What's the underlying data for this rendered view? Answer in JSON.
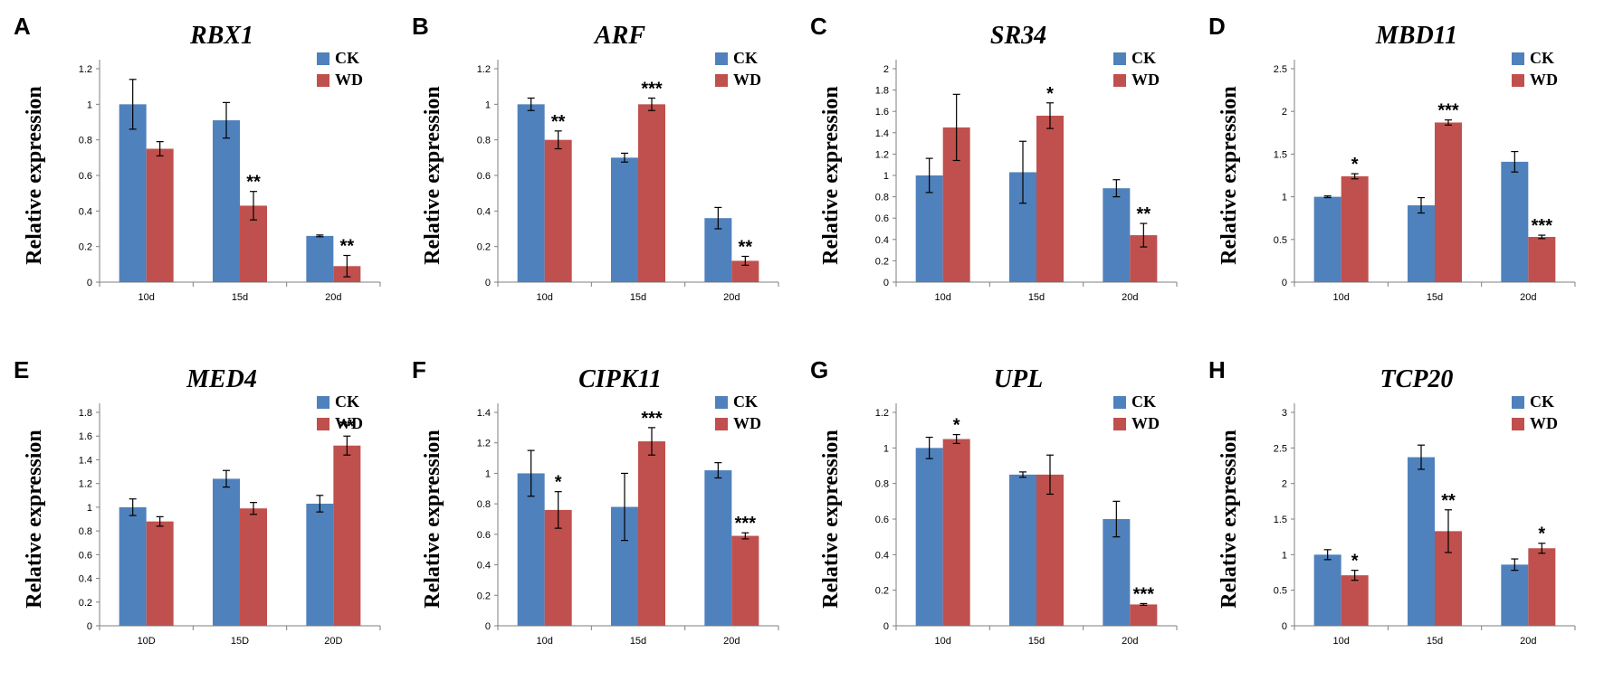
{
  "colors": {
    "ck": "#4f81bd",
    "wd": "#c0504d",
    "axis": "#7f7f7f",
    "errorbar": "#000000"
  },
  "chart_data": [
    {
      "panel": "A",
      "title": "RBX1",
      "type": "bar",
      "ylabel": "Relative expression",
      "categories": [
        "10d",
        "15d",
        "20d"
      ],
      "ylim": [
        0,
        1.2
      ],
      "yticks": [
        "0",
        "0.2",
        "0.4",
        "0.6",
        "0.8",
        "1",
        "1.2"
      ],
      "legend": [
        "CK",
        "WD"
      ],
      "series": [
        {
          "name": "CK",
          "values": [
            1.0,
            0.91,
            0.26
          ],
          "errors": [
            0.14,
            0.1,
            0.005
          ],
          "sig": [
            "",
            "",
            ""
          ]
        },
        {
          "name": "WD",
          "values": [
            0.75,
            0.43,
            0.09
          ],
          "errors": [
            0.04,
            0.08,
            0.06
          ],
          "sig": [
            "",
            "**",
            "**"
          ]
        }
      ]
    },
    {
      "panel": "B",
      "title": "ARF",
      "type": "bar",
      "ylabel": "Relative expression",
      "categories": [
        "10d",
        "15d",
        "20d"
      ],
      "ylim": [
        0,
        1.2
      ],
      "yticks": [
        "0",
        "0.2",
        "0.4",
        "0.6",
        "0.8",
        "1",
        "1.2"
      ],
      "legend": [
        "CK",
        "WD"
      ],
      "series": [
        {
          "name": "CK",
          "values": [
            1.0,
            0.7,
            0.36
          ],
          "errors": [
            0.035,
            0.025,
            0.06
          ],
          "sig": [
            "",
            "",
            ""
          ]
        },
        {
          "name": "WD",
          "values": [
            0.8,
            1.0,
            0.12
          ],
          "errors": [
            0.05,
            0.035,
            0.025
          ],
          "sig": [
            "**",
            "***",
            "**"
          ]
        }
      ]
    },
    {
      "panel": "C",
      "title": "SR34",
      "type": "bar",
      "ylabel": "Relative expression",
      "categories": [
        "10d",
        "15d",
        "20d"
      ],
      "ylim": [
        0,
        2
      ],
      "yticks": [
        "0",
        "0.2",
        "0.4",
        "0.6",
        "0.8",
        "1",
        "1.2",
        "1.4",
        "1.6",
        "1.8",
        "2"
      ],
      "legend": [
        "CK",
        "WD"
      ],
      "series": [
        {
          "name": "CK",
          "values": [
            1.0,
            1.03,
            0.88
          ],
          "errors": [
            0.16,
            0.29,
            0.08
          ],
          "sig": [
            "",
            "",
            ""
          ]
        },
        {
          "name": "WD",
          "values": [
            1.45,
            1.56,
            0.44
          ],
          "errors": [
            0.31,
            0.12,
            0.11
          ],
          "sig": [
            "",
            "*",
            "**"
          ]
        }
      ]
    },
    {
      "panel": "D",
      "title": "MBD11",
      "type": "bar",
      "ylabel": "Relative expression",
      "categories": [
        "10d",
        "15d",
        "20d"
      ],
      "ylim": [
        0,
        2.5
      ],
      "yticks": [
        "0",
        "0.5",
        "1",
        "1.5",
        "2",
        "2.5"
      ],
      "legend": [
        "CK",
        "WD"
      ],
      "series": [
        {
          "name": "CK",
          "values": [
            1.0,
            0.9,
            1.41
          ],
          "errors": [
            0.01,
            0.09,
            0.12
          ],
          "sig": [
            "",
            "",
            ""
          ]
        },
        {
          "name": "WD",
          "values": [
            1.24,
            1.87,
            0.53
          ],
          "errors": [
            0.03,
            0.03,
            0.02
          ],
          "sig": [
            "*",
            "***",
            "***"
          ]
        }
      ]
    },
    {
      "panel": "E",
      "title": "MED4",
      "type": "bar",
      "ylabel": "Relative expression",
      "categories": [
        "10D",
        "15D",
        "20D"
      ],
      "ylim": [
        0,
        1.8
      ],
      "yticks": [
        "0",
        "0.2",
        "0.4",
        "0.6",
        "0.8",
        "1",
        "1.2",
        "1.4",
        "1.6",
        "1.8"
      ],
      "legend": [
        "CK",
        "WD"
      ],
      "series": [
        {
          "name": "CK",
          "values": [
            1.0,
            1.24,
            1.03
          ],
          "errors": [
            0.07,
            0.07,
            0.07
          ],
          "sig": [
            "",
            "",
            ""
          ]
        },
        {
          "name": "WD",
          "values": [
            0.88,
            0.99,
            1.52
          ],
          "errors": [
            0.04,
            0.05,
            0.08
          ],
          "sig": [
            "",
            "",
            "**"
          ]
        }
      ]
    },
    {
      "panel": "F",
      "title": "CIPK11",
      "type": "bar",
      "ylabel": "Relative expression",
      "categories": [
        "10d",
        "15d",
        "20d"
      ],
      "ylim": [
        0,
        1.4
      ],
      "yticks": [
        "0",
        "0.2",
        "0.4",
        "0.6",
        "0.8",
        "1",
        "1.2",
        "1.4"
      ],
      "legend": [
        "CK",
        "WD"
      ],
      "series": [
        {
          "name": "CK",
          "values": [
            1.0,
            0.78,
            1.02
          ],
          "errors": [
            0.15,
            0.22,
            0.05
          ],
          "sig": [
            "",
            "",
            ""
          ]
        },
        {
          "name": "WD",
          "values": [
            0.76,
            1.21,
            0.59
          ],
          "errors": [
            0.12,
            0.09,
            0.02
          ],
          "sig": [
            "*",
            "***",
            "***"
          ]
        }
      ]
    },
    {
      "panel": "G",
      "title": "UPL",
      "type": "bar",
      "ylabel": "Relative expression",
      "categories": [
        "10d",
        "15d",
        "20d"
      ],
      "ylim": [
        0,
        1.2
      ],
      "yticks": [
        "0",
        "0.2",
        "0.4",
        "0.6",
        "0.8",
        "1",
        "1.2"
      ],
      "legend": [
        "CK",
        "WD"
      ],
      "series": [
        {
          "name": "CK",
          "values": [
            1.0,
            0.85,
            0.6
          ],
          "errors": [
            0.06,
            0.015,
            0.1
          ],
          "sig": [
            "",
            "",
            ""
          ]
        },
        {
          "name": "WD",
          "values": [
            1.05,
            0.85,
            0.12
          ],
          "errors": [
            0.025,
            0.11,
            0.005
          ],
          "sig": [
            "*",
            "",
            "***"
          ]
        }
      ]
    },
    {
      "panel": "H",
      "title": "TCP20",
      "type": "bar",
      "ylabel": "Relative expression",
      "categories": [
        "10d",
        "15d",
        "20d"
      ],
      "ylim": [
        0,
        3
      ],
      "yticks": [
        "0",
        "0.5",
        "1",
        "1.5",
        "2",
        "2.5",
        "3"
      ],
      "legend": [
        "CK",
        "WD"
      ],
      "series": [
        {
          "name": "CK",
          "values": [
            1.0,
            2.37,
            0.86
          ],
          "errors": [
            0.07,
            0.17,
            0.08
          ],
          "sig": [
            "",
            "",
            ""
          ]
        },
        {
          "name": "WD",
          "values": [
            0.71,
            1.33,
            1.09
          ],
          "errors": [
            0.07,
            0.3,
            0.07
          ],
          "sig": [
            "*",
            "**",
            "*"
          ]
        }
      ]
    }
  ]
}
